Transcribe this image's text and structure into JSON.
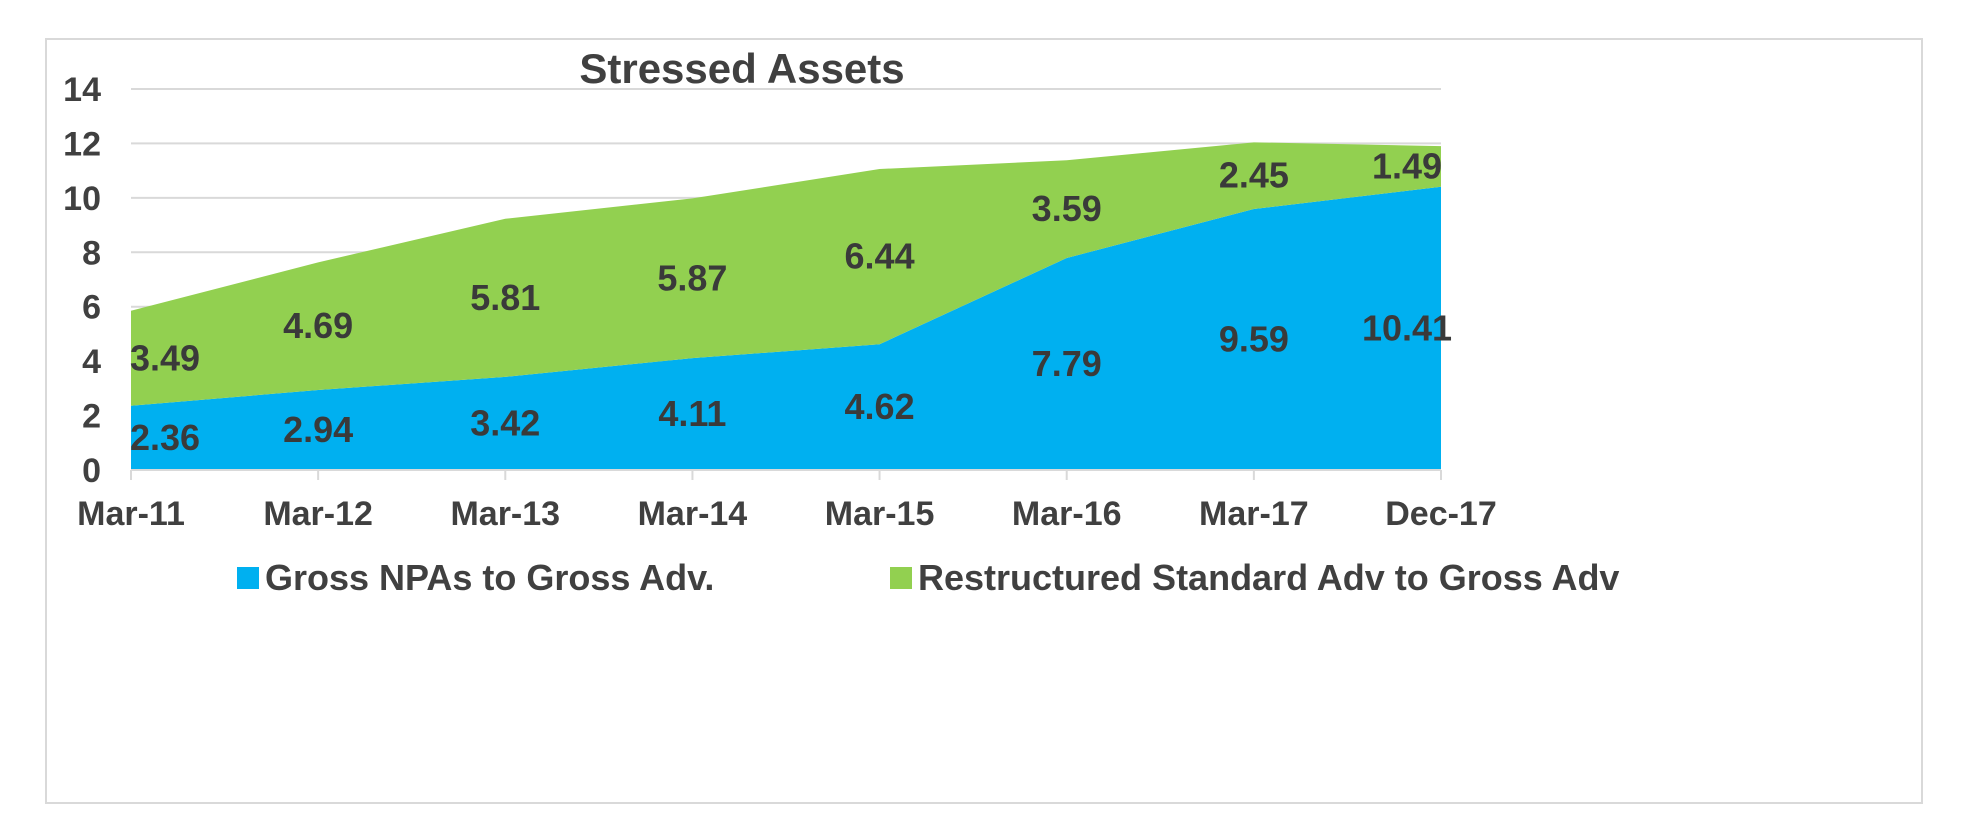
{
  "chart_data": {
    "type": "area",
    "stacked": true,
    "title": "Stressed Assets",
    "xlabel": "",
    "ylabel": "",
    "categories": [
      "Mar-11",
      "Mar-12",
      "Mar-13",
      "Mar-14",
      "Mar-15",
      "Mar-16",
      "Mar-17",
      "Dec-17"
    ],
    "ylim": [
      0,
      14
    ],
    "yticks": [
      0,
      2,
      4,
      6,
      8,
      10,
      12,
      14
    ],
    "yticklabels": [
      "0",
      "2",
      "4",
      "6",
      "8",
      "10",
      "12",
      "14"
    ],
    "grid": true,
    "legend": "bottom",
    "series": [
      {
        "name": "Gross NPAs to Gross Adv.",
        "color": "#00b0f0",
        "values": [
          2.36,
          2.94,
          3.42,
          4.11,
          4.62,
          7.79,
          9.59,
          10.41
        ],
        "labels": [
          "2.36",
          "2.94",
          "3.42",
          "4.11",
          "4.62",
          "7.79",
          "9.59",
          "10.41"
        ]
      },
      {
        "name": "Restructured Standard Adv to Gross Adv",
        "color": "#92d050",
        "values": [
          3.49,
          4.69,
          5.81,
          5.87,
          6.44,
          3.59,
          2.45,
          1.49
        ],
        "labels": [
          "3.49",
          "4.69",
          "5.81",
          "5.87",
          "6.44",
          "3.59",
          "2.45",
          "1.49"
        ]
      }
    ]
  }
}
